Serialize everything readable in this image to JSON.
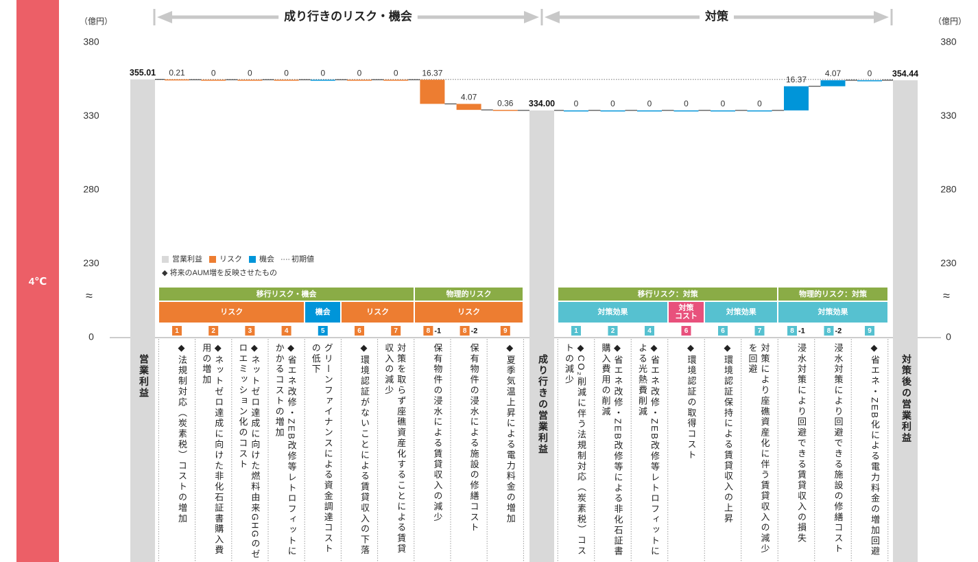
{
  "sidebar": "4℃",
  "chart_data": {
    "type": "waterfall",
    "unit_left": "（億円）",
    "unit_right": "（億円）",
    "sections": [
      "成り行きのリスク・機会",
      "対策"
    ],
    "ylim": [
      230,
      380
    ],
    "yticks": [
      0,
      230,
      280,
      330,
      380
    ],
    "axis_break": "≈",
    "legend": [
      {
        "name": "営業利益",
        "color": "#d9d9d9"
      },
      {
        "name": "リスク",
        "color": "#ed7d31"
      },
      {
        "name": "機会",
        "color": "#0095d9"
      },
      {
        "name": "初期値",
        "style": "dotted"
      }
    ],
    "note": "◆ 将来のAUM増を反映させたもの",
    "start": {
      "label": "営業利益",
      "value": 355.01,
      "color": "#d9d9d9"
    },
    "risks": {
      "groups": [
        {
          "label": "移行リスク・機会",
          "span": 7,
          "color": "#8aac46",
          "sub": [
            {
              "label": "リスク",
              "span": 4,
              "color": "#ed7d31"
            },
            {
              "label": "機会",
              "span": 1,
              "color": "#0095d9"
            },
            {
              "label": "リスク",
              "span": 2,
              "color": "#ed7d31"
            }
          ]
        },
        {
          "label": "物理的リスク",
          "span": 3,
          "color": "#8aac46",
          "sub": [
            {
              "label": "リスク",
              "span": 3,
              "color": "#ed7d31"
            }
          ]
        }
      ],
      "columns": [
        {
          "badge": "1",
          "value": -0.21,
          "value_label": "0.21",
          "color": "#ed7d31",
          "description": "◆法規制対応（炭素税）コストの増加"
        },
        {
          "badge": "2",
          "value": 0,
          "value_label": "0",
          "color": "#ed7d31",
          "description": "◆ネットゼロ達成に向けた非化石証書購入費用の増加"
        },
        {
          "badge": "3",
          "value": 0,
          "value_label": "0",
          "color": "#ed7d31",
          "description": "◆ネットゼロ達成に向けた燃料由来GHGのゼロエミッション化のコスト"
        },
        {
          "badge": "4",
          "value": 0,
          "value_label": "0",
          "color": "#ed7d31",
          "description": "◆省エネ改修・ZEB改修等レトロフィットにかかるコストの増加"
        },
        {
          "badge": "5",
          "value": 0,
          "value_label": "0",
          "color": "#0095d9",
          "description": "グリーンファイナンスによる資金調達コストの低下"
        },
        {
          "badge": "6",
          "value": 0,
          "value_label": "0",
          "color": "#ed7d31",
          "description": "◆環境認証がないことによる賃貸収入の下落"
        },
        {
          "badge": "7",
          "value": 0,
          "value_label": "0",
          "color": "#ed7d31",
          "description": "対策を取らず座礁資産化することによる賃貸収入の減少"
        },
        {
          "badge": "8",
          "badge_suffix": "-1",
          "value": -16.37,
          "value_label": "16.37",
          "color": "#ed7d31",
          "description": "保有物件の浸水による賃貸収入の減少"
        },
        {
          "badge": "8",
          "badge_suffix": "-2",
          "value": -4.07,
          "value_label": "4.07",
          "color": "#ed7d31",
          "description": "保有物件の浸水による施設の修繕コスト"
        },
        {
          "badge": "9",
          "value": -0.36,
          "value_label": "0.36",
          "color": "#ed7d31",
          "description": "◆夏季気温上昇による電力料金の増加"
        }
      ]
    },
    "middle": {
      "label": "成り行きの営業利益",
      "value": 334,
      "value_label": "334.00",
      "color": "#d9d9d9"
    },
    "measures": {
      "groups": [
        {
          "label": "移行リスク：対策",
          "span": 6,
          "color": "#8aac46",
          "sub": [
            {
              "label": [
                "対策効果"
              ],
              "span": 3,
              "color": "#56c1d0"
            },
            {
              "label": [
                "対策",
                "コスト"
              ],
              "span": 1,
              "color": "#e8517c"
            },
            {
              "label": [
                "対策効果"
              ],
              "span": 2,
              "color": "#56c1d0"
            }
          ]
        },
        {
          "label": "物理的リスク：対策",
          "span": 3,
          "color": "#8aac46",
          "sub": [
            {
              "label": [
                "対策効果"
              ],
              "span": 3,
              "color": "#56c1d0"
            }
          ]
        }
      ],
      "columns": [
        {
          "badge": "1",
          "value": 0,
          "value_label": "0",
          "color": "#0095d9",
          "description": "◆CO₂削減に伴う法規制対応（炭素税）コストの減少"
        },
        {
          "badge": "2",
          "value": 0,
          "value_label": "0",
          "color": "#0095d9",
          "description": "◆省エネ改修・ZEB改修等による非化石証書購入費用の削減"
        },
        {
          "badge": "4",
          "value": 0,
          "value_label": "0",
          "color": "#0095d9",
          "description": "◆省エネ改修・ZEB改修等レトロフィットによる光熱費削減"
        },
        {
          "badge": "6",
          "value": 0,
          "value_label": "0",
          "color": "#0095d9",
          "description": "◆環境認証の取得コスト"
        },
        {
          "badge": "6",
          "value": 0,
          "value_label": "0",
          "color": "#0095d9",
          "description": "◆環境認証保持による賃貸収入の上昇"
        },
        {
          "badge": "7",
          "value": 0,
          "value_label": "0",
          "color": "#0095d9",
          "description": "対策により座礁資産化に伴う賃貸収入の減少を回避"
        },
        {
          "badge": "8",
          "badge_suffix": "-1",
          "value": 16.37,
          "value_label": "16.37",
          "color": "#0095d9",
          "description": "浸水対策により回避できる賃貸収入の損失"
        },
        {
          "badge": "8",
          "badge_suffix": "-2",
          "value": 4.07,
          "value_label": "4.07",
          "color": "#0095d9",
          "description": "浸水対策により回避できる施設の修繕コスト"
        },
        {
          "badge": "9",
          "value": 0,
          "value_label": "0",
          "color": "#0095d9",
          "description": "◆省エネ・ZEB化による電力料金の増加回避"
        }
      ]
    },
    "end": {
      "label": "対策後の営業利益",
      "value": 354.44,
      "color": "#d9d9d9"
    }
  }
}
